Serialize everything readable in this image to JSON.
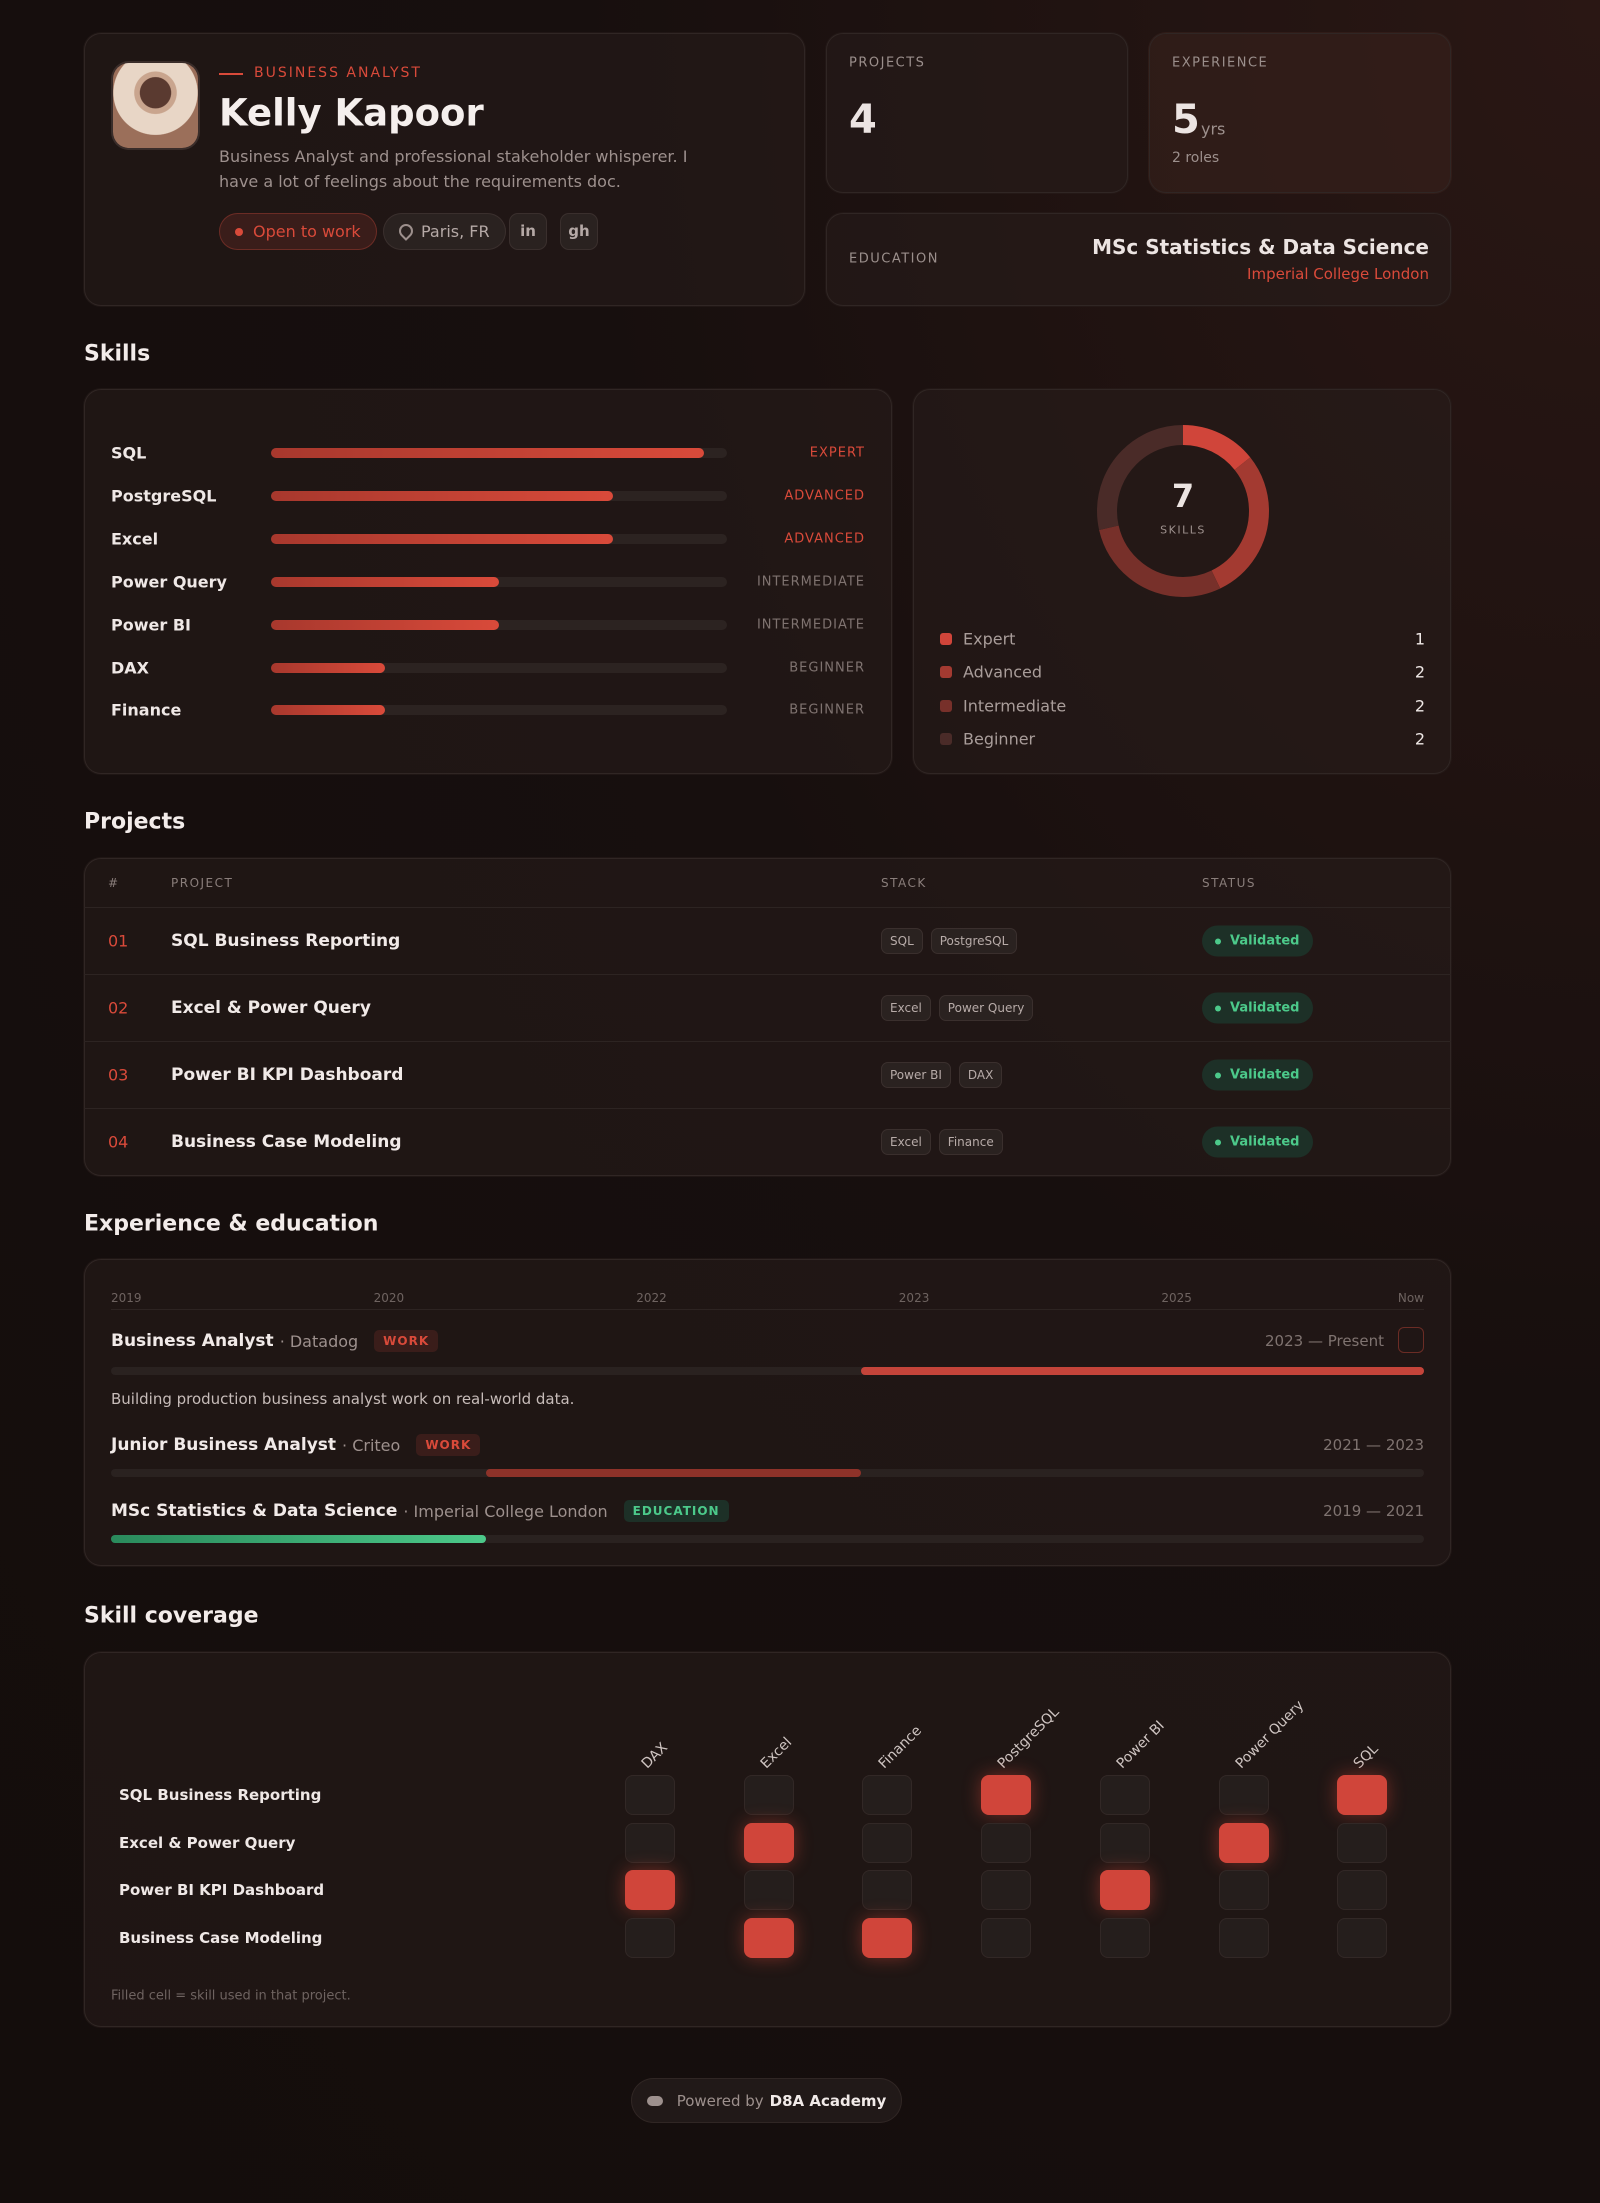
{
  "profile": {
    "role": "BUSINESS ANALYST",
    "name": "Kelly Kapoor",
    "bio": "Business Analyst and professional stakeholder whisperer. I have a lot of feelings about the requirements doc.",
    "status": "Open to work",
    "location": "Paris, FR",
    "links": [
      "in",
      "gh"
    ]
  },
  "stats": {
    "projects": {
      "label": "PROJECTS",
      "value": 4
    },
    "experience": {
      "label": "EXPERIENCE",
      "value": 5,
      "unit": "yrs",
      "note": "2 roles"
    },
    "education": {
      "label": "EDUCATION",
      "degree": "MSc Statistics & Data Science",
      "school": "Imperial College London"
    }
  },
  "skills": {
    "title": "Skills",
    "items": [
      {
        "name": "SQL",
        "level": "EXPERT",
        "level_pct": 95
      },
      {
        "name": "PostgreSQL",
        "level": "ADVANCED",
        "level_pct": 75
      },
      {
        "name": "Excel",
        "level": "ADVANCED",
        "level_pct": 75
      },
      {
        "name": "Power Query",
        "level": "INTERMEDIATE",
        "level_pct": 50
      },
      {
        "name": "Power BI",
        "level": "INTERMEDIATE",
        "level_pct": 50
      },
      {
        "name": "DAX",
        "level": "BEGINNER",
        "level_pct": 25
      },
      {
        "name": "Finance",
        "level": "BEGINNER",
        "level_pct": 25
      }
    ],
    "summary": {
      "total": 7,
      "total_label": "SKILLS",
      "levels": [
        {
          "name": "Expert",
          "count": 1,
          "color": "#d0453a"
        },
        {
          "name": "Advanced",
          "count": 2,
          "color": "#a33a31"
        },
        {
          "name": "Intermediate",
          "count": 2,
          "color": "#77302a"
        },
        {
          "name": "Beginner",
          "count": 2,
          "color": "#4a2b28"
        }
      ]
    }
  },
  "projects": {
    "title": "Projects",
    "headers": [
      "#",
      "PROJECT",
      "STACK",
      "STATUS"
    ],
    "rows": [
      {
        "id": "01",
        "name": "SQL Business Reporting",
        "stack": [
          "SQL",
          "PostgreSQL"
        ],
        "status": "Validated"
      },
      {
        "id": "02",
        "name": "Excel & Power Query",
        "stack": [
          "Excel",
          "Power Query"
        ],
        "status": "Validated"
      },
      {
        "id": "03",
        "name": "Power BI KPI Dashboard",
        "stack": [
          "Power BI",
          "DAX"
        ],
        "status": "Validated"
      },
      {
        "id": "04",
        "name": "Business Case Modeling",
        "stack": [
          "Excel",
          "Finance"
        ],
        "status": "Validated"
      }
    ]
  },
  "experience": {
    "title": "Experience & education",
    "axis_labels": [
      "2019",
      "2020",
      "2022",
      "2023",
      "2025",
      "Now"
    ],
    "range": [
      2019,
      2026
    ],
    "items": [
      {
        "title": "Business Analyst",
        "org": "· Datadog",
        "kind": "WORK",
        "dates": "2023 — Present",
        "start": 2023,
        "end": 2026,
        "description": "Building production business analyst work on real-world data."
      },
      {
        "title": "Junior Business Analyst",
        "org": "· Criteo",
        "kind": "WORK",
        "dates": "2021 — 2023",
        "start": 2021,
        "end": 2023
      },
      {
        "title": "MSc Statistics & Data Science",
        "org": "· Imperial College London",
        "kind": "EDUCATION",
        "dates": "2019 — 2021",
        "start": 2019,
        "end": 2021
      }
    ]
  },
  "coverage": {
    "title": "Skill coverage",
    "columns": [
      "DAX",
      "Excel",
      "Finance",
      "PostgreSQL",
      "Power BI",
      "Power Query",
      "SQL"
    ],
    "rows": [
      "SQL Business Reporting",
      "Excel & Power Query",
      "Power BI KPI Dashboard",
      "Business Case Modeling"
    ],
    "matrix": [
      [
        0,
        0,
        0,
        1,
        0,
        0,
        1
      ],
      [
        0,
        1,
        0,
        0,
        0,
        1,
        0
      ],
      [
        1,
        0,
        0,
        0,
        1,
        0,
        0
      ],
      [
        0,
        1,
        1,
        0,
        0,
        0,
        0
      ]
    ],
    "note": "Filled cell = skill used in that project."
  },
  "footer": {
    "prefix": "Powered by",
    "brand": "D8A Academy"
  }
}
